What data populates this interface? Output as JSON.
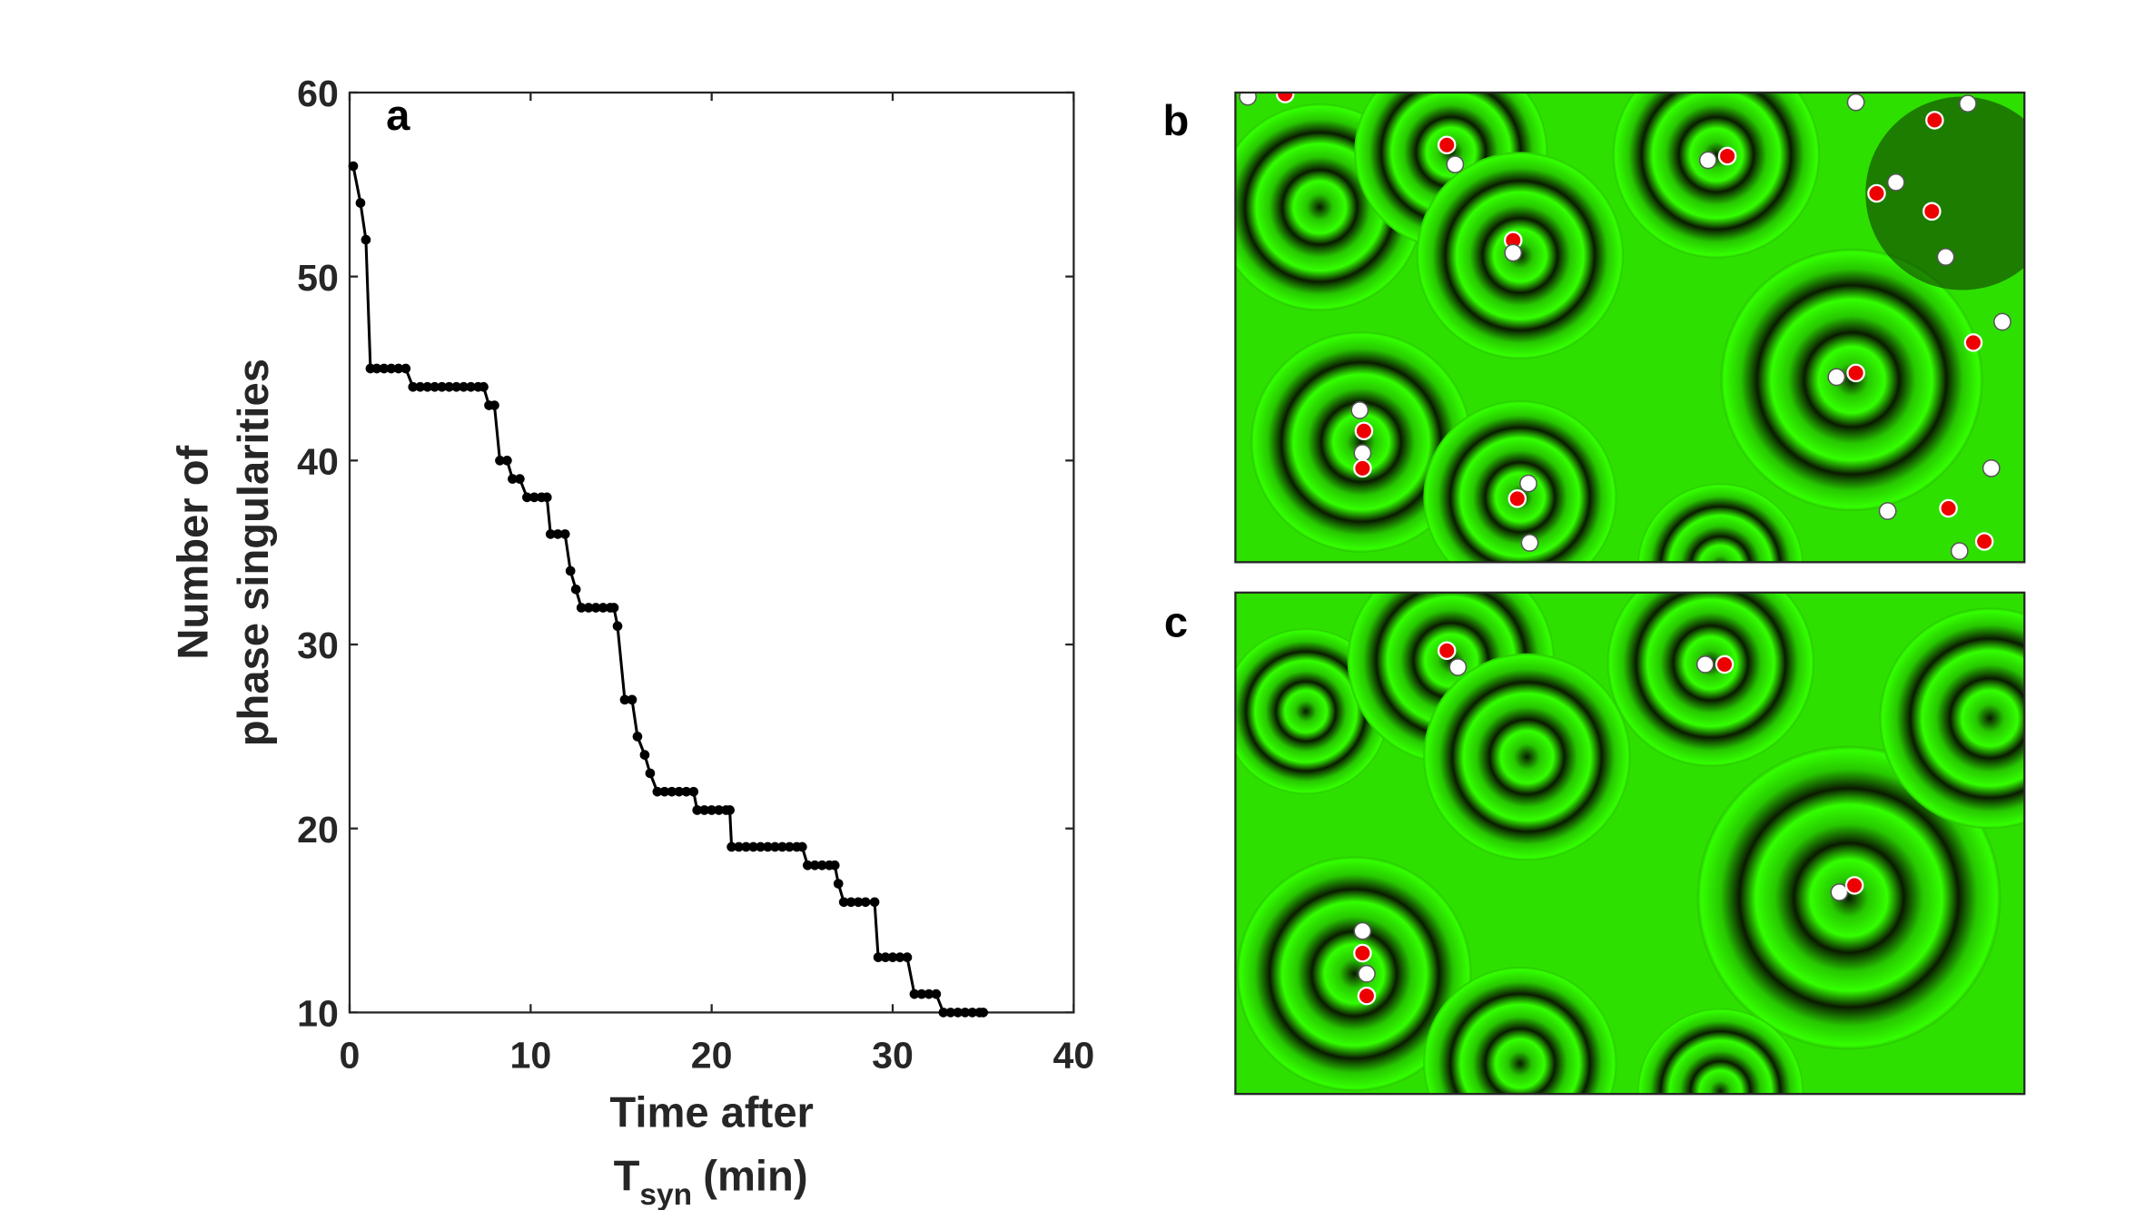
{
  "chart_data": {
    "type": "line",
    "panel_label": "a",
    "y_label": [
      "Number of",
      "phase singularities"
    ],
    "x_label": {
      "line1": "Time after",
      "symbol": "T",
      "subscript": "syn",
      "unit": "(min)"
    },
    "x": [
      0.2,
      0.6,
      0.9,
      1.15,
      1.5,
      1.9,
      2.3,
      2.7,
      3.1,
      3.5,
      3.9,
      4.3,
      4.7,
      5.1,
      5.5,
      5.9,
      6.3,
      6.7,
      7.1,
      7.4,
      7.7,
      8.0,
      8.3,
      8.7,
      9.0,
      9.4,
      9.8,
      10.2,
      10.6,
      10.9,
      11.1,
      11.5,
      11.9,
      12.2,
      12.5,
      12.8,
      13.2,
      13.6,
      14.0,
      14.4,
      14.6,
      14.8,
      15.2,
      15.6,
      15.9,
      16.3,
      16.6,
      17.0,
      17.4,
      17.8,
      18.2,
      18.6,
      19.0,
      19.2,
      19.6,
      20.0,
      20.4,
      20.8,
      21.0,
      21.1,
      21.5,
      21.9,
      22.3,
      22.7,
      23.1,
      23.5,
      23.9,
      24.3,
      24.7,
      25.0,
      25.3,
      25.7,
      26.1,
      26.5,
      26.8,
      27.0,
      27.3,
      27.7,
      28.1,
      28.5,
      29.0,
      29.2,
      29.6,
      30.0,
      30.4,
      30.8,
      31.2,
      31.6,
      32.0,
      32.4,
      32.8,
      33.2,
      33.6,
      34.0,
      34.4,
      34.8,
      35.0
    ],
    "series": [
      {
        "color": "#000000",
        "values": [
          56,
          54,
          52,
          45,
          45,
          45,
          45,
          45,
          45,
          44,
          44,
          44,
          44,
          44,
          44,
          44,
          44,
          44,
          44,
          44,
          43,
          43,
          40,
          40,
          39,
          39,
          38,
          38,
          38,
          38,
          36,
          36,
          36,
          34,
          33,
          32,
          32,
          32,
          32,
          32,
          32,
          31,
          27,
          27,
          25,
          24,
          23,
          22,
          22,
          22,
          22,
          22,
          22,
          21,
          21,
          21,
          21,
          21,
          21,
          19,
          19,
          19,
          19,
          19,
          19,
          19,
          19,
          19,
          19,
          19,
          18,
          18,
          18,
          18,
          18,
          17,
          16,
          16,
          16,
          16,
          16,
          13,
          13,
          13,
          13,
          13,
          11,
          11,
          11,
          11,
          10,
          10,
          10,
          10,
          10,
          10,
          10
        ]
      }
    ],
    "xlim": [
      0,
      40
    ],
    "xticks": [
      0,
      10,
      20,
      30,
      40
    ],
    "ylim": [
      10,
      60
    ],
    "yticks": [
      10,
      20,
      30,
      40,
      50,
      60
    ]
  },
  "images": [
    {
      "label": "b"
    },
    {
      "label": "c"
    }
  ]
}
